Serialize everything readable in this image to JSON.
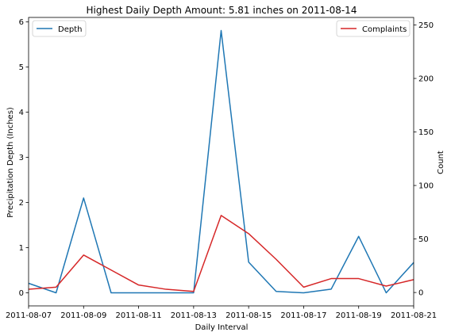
{
  "chart_data": {
    "type": "line",
    "title": "Highest Daily Depth Amount: 5.81 inches on 2011-08-14",
    "xlabel": "Daily Interval",
    "ylabel_left": "Precipitation Depth (Inches)",
    "ylabel_right": "Count",
    "x_ticks": [
      "2011-08-07",
      "2011-08-09",
      "2011-08-11",
      "2011-08-13",
      "2011-08-15",
      "2011-08-17",
      "2011-08-19",
      "2011-08-21"
    ],
    "y_left_ticks": [
      "0",
      "1",
      "2",
      "3",
      "4",
      "5",
      "6"
    ],
    "y_right_ticks": [
      "0",
      "50",
      "100",
      "150",
      "200",
      "250"
    ],
    "ylim_left": [
      -0.29,
      6.1
    ],
    "ylim_right": [
      -12.5,
      257
    ],
    "series": [
      {
        "name": "Depth",
        "axis": "left",
        "color": "#1f77b4",
        "x": [
          "2011-08-07",
          "2011-08-08",
          "2011-08-09",
          "2011-08-10",
          "2011-08-11",
          "2011-08-12",
          "2011-08-13",
          "2011-08-14",
          "2011-08-15",
          "2011-08-16",
          "2011-08-17",
          "2011-08-18",
          "2011-08-19",
          "2011-08-20",
          "2011-08-21"
        ],
        "values": [
          0.21,
          0.0,
          2.1,
          0.0,
          0.0,
          0.0,
          0.0,
          5.81,
          0.68,
          0.03,
          0.0,
          0.08,
          1.25,
          0.0,
          0.67
        ]
      },
      {
        "name": "Complaints",
        "axis": "right",
        "color": "#d62728",
        "x": [
          "2011-08-07",
          "2011-08-08",
          "2011-08-09",
          "2011-08-11",
          "2011-08-12",
          "2011-08-13",
          "2011-08-14",
          "2011-08-15",
          "2011-08-16",
          "2011-08-17",
          "2011-08-18",
          "2011-08-19",
          "2011-08-20",
          "2011-08-21"
        ],
        "values": [
          3,
          5,
          35,
          7,
          3,
          1,
          72,
          55,
          31,
          5,
          13,
          13,
          6,
          12
        ]
      }
    ],
    "legend_left": {
      "placement": "top-left",
      "label": "Depth"
    },
    "legend_right": {
      "placement": "top-right",
      "label": "Complaints"
    },
    "grid": false
  }
}
